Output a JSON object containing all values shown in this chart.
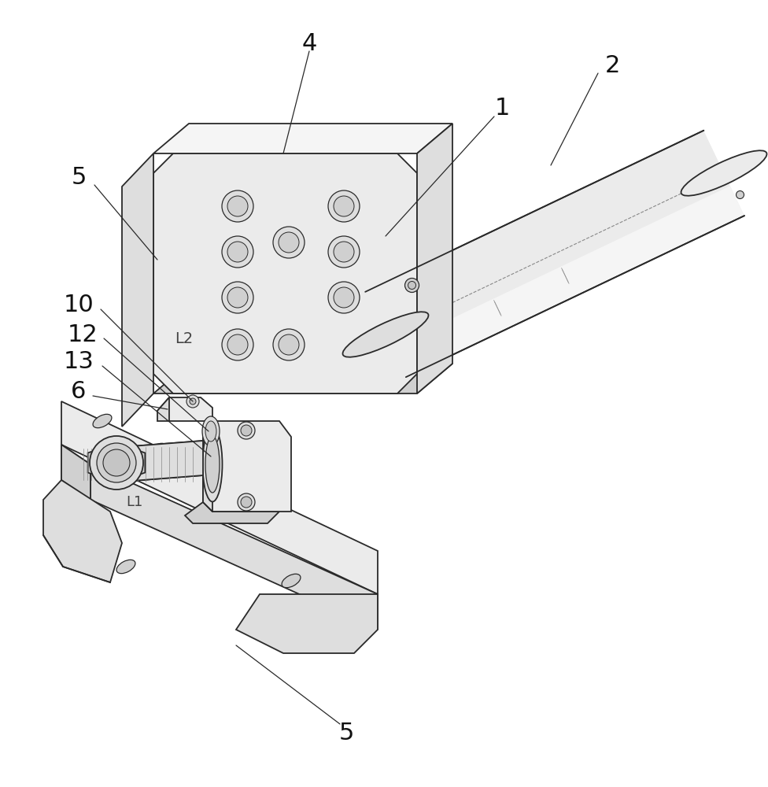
{
  "bg_color": "#ffffff",
  "lc": "#2a2a2a",
  "lw": 1.3,
  "tlw": 0.75,
  "s1": "#f5f5f5",
  "s2": "#ebebeb",
  "s3": "#dedede",
  "s4": "#d0d0d0",
  "s5": "#c5c5c5",
  "s6": "#b8b8b8",
  "figsize": [
    9.76,
    10.0
  ],
  "dpi": 100
}
